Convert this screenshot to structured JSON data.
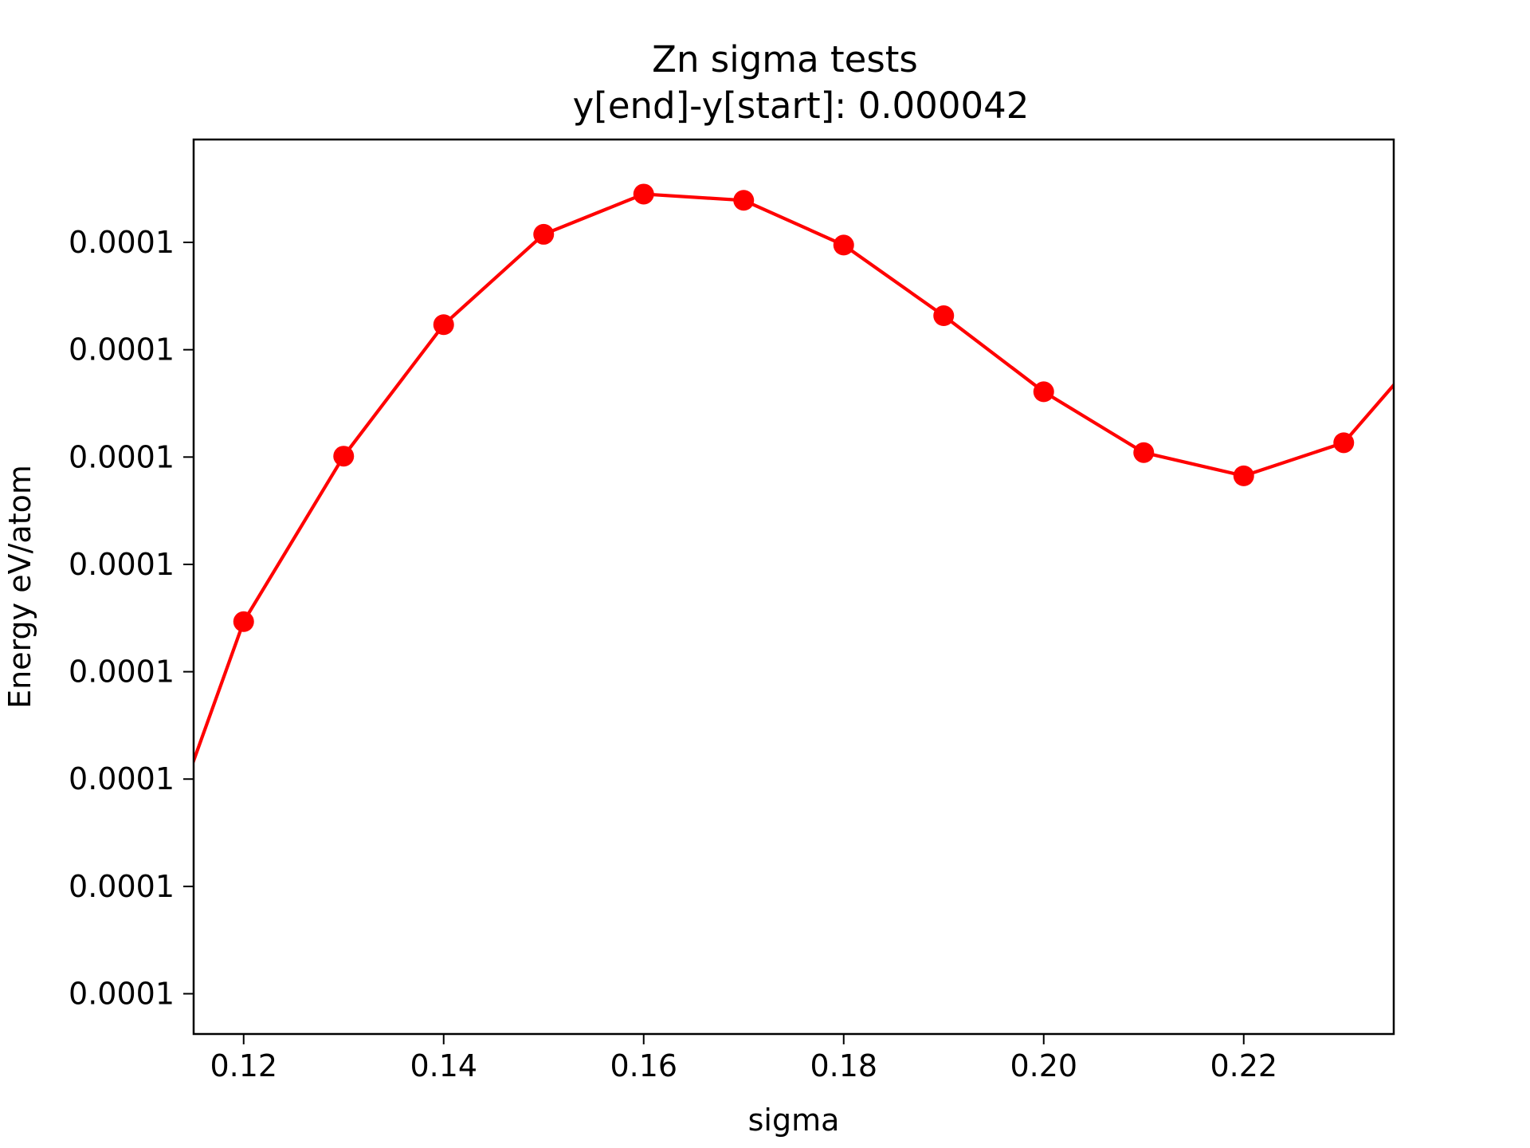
{
  "chart_data": {
    "type": "line",
    "title": "Zn sigma tests",
    "subtitle": "y[end]-y[start]:   0.000042",
    "xlabel": "sigma",
    "ylabel": "Energy eV/atom",
    "xlim": [
      0.115,
      0.235
    ],
    "x_ticks": [
      0.12,
      0.14,
      0.16,
      0.18,
      0.2,
      0.22
    ],
    "x_tick_labels": [
      "0.12",
      "0.14",
      "0.16",
      "0.18",
      "0.20",
      "0.22"
    ],
    "ylim": [
      0,
      1
    ],
    "y_ticks": [
      0.045,
      0.165,
      0.285,
      0.405,
      0.525,
      0.645,
      0.765,
      0.885
    ],
    "y_tick_labels": [
      "0.0001",
      "0.0001",
      "0.0001",
      "0.0001",
      "0.0001",
      "0.0001",
      "0.0001",
      "0.0001"
    ],
    "grid": false,
    "series": [
      {
        "color": "#ff0000",
        "marker": "circle",
        "x": [
          0.11,
          0.12,
          0.13,
          0.14,
          0.15,
          0.16,
          0.17,
          0.18,
          0.19,
          0.2,
          0.21,
          0.22,
          0.23,
          0.24
        ],
        "y": [
          0.15,
          0.461,
          0.646,
          0.793,
          0.894,
          0.939,
          0.932,
          0.882,
          0.803,
          0.718,
          0.65,
          0.624,
          0.661,
          0.79
        ]
      }
    ]
  }
}
